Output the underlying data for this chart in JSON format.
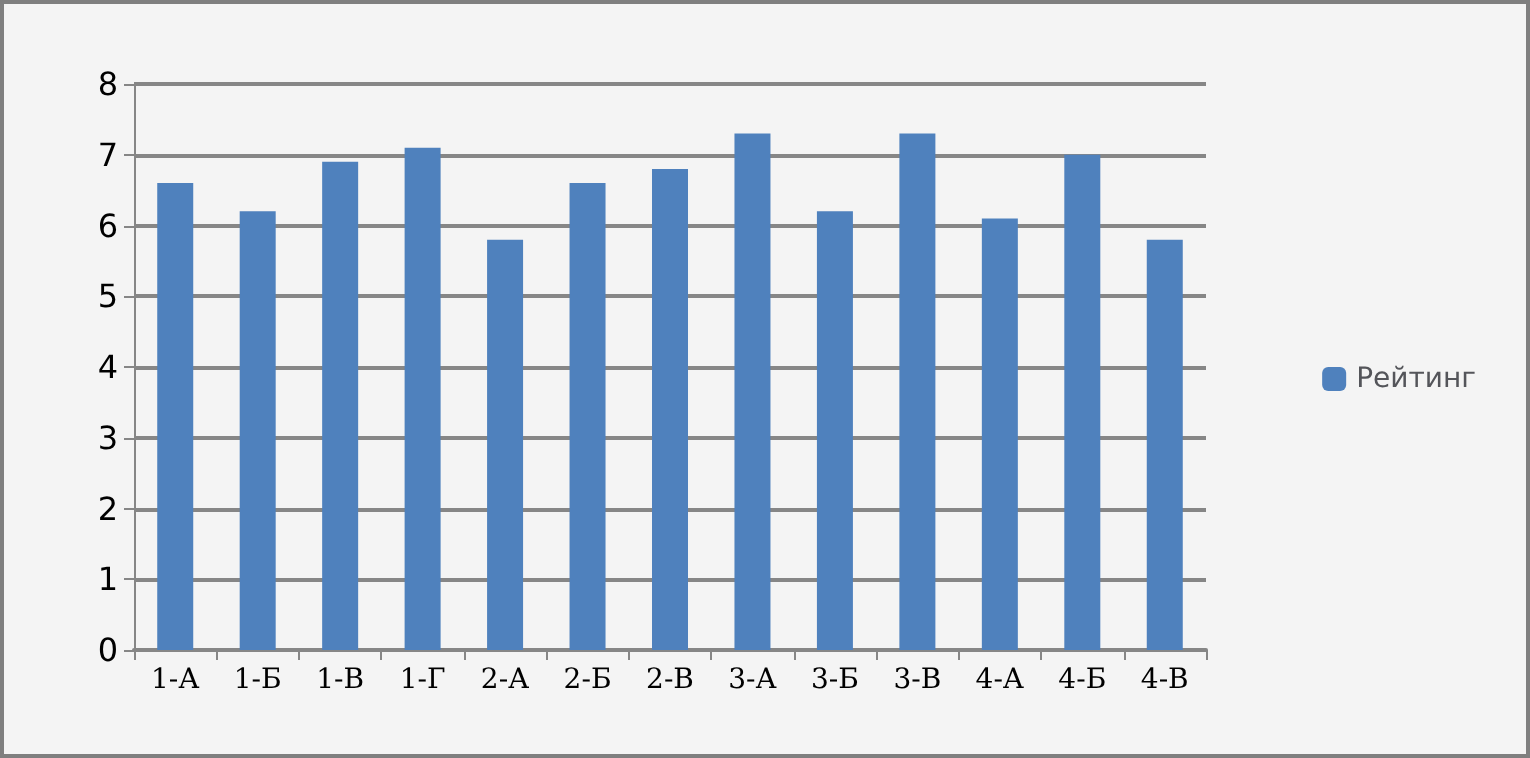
{
  "chart_data": {
    "type": "bar",
    "categories": [
      "1-А",
      "1-Б",
      "1-В",
      "1-Г",
      "2-А",
      "2-Б",
      "2-В",
      "3-А",
      "3-Б",
      "3-В",
      "4-А",
      "4-Б",
      "4-В"
    ],
    "series": [
      {
        "name": "Рейтинг",
        "color": "#4f81bd",
        "values": [
          6.6,
          6.2,
          6.9,
          7.1,
          5.8,
          6.6,
          6.8,
          7.3,
          6.2,
          7.3,
          6.1,
          7.0,
          5.8
        ]
      }
    ],
    "ylim": [
      0,
      8
    ],
    "yticks": [
      0,
      1,
      2,
      3,
      4,
      5,
      6,
      7,
      8
    ],
    "grid": "y",
    "legend": "right"
  }
}
